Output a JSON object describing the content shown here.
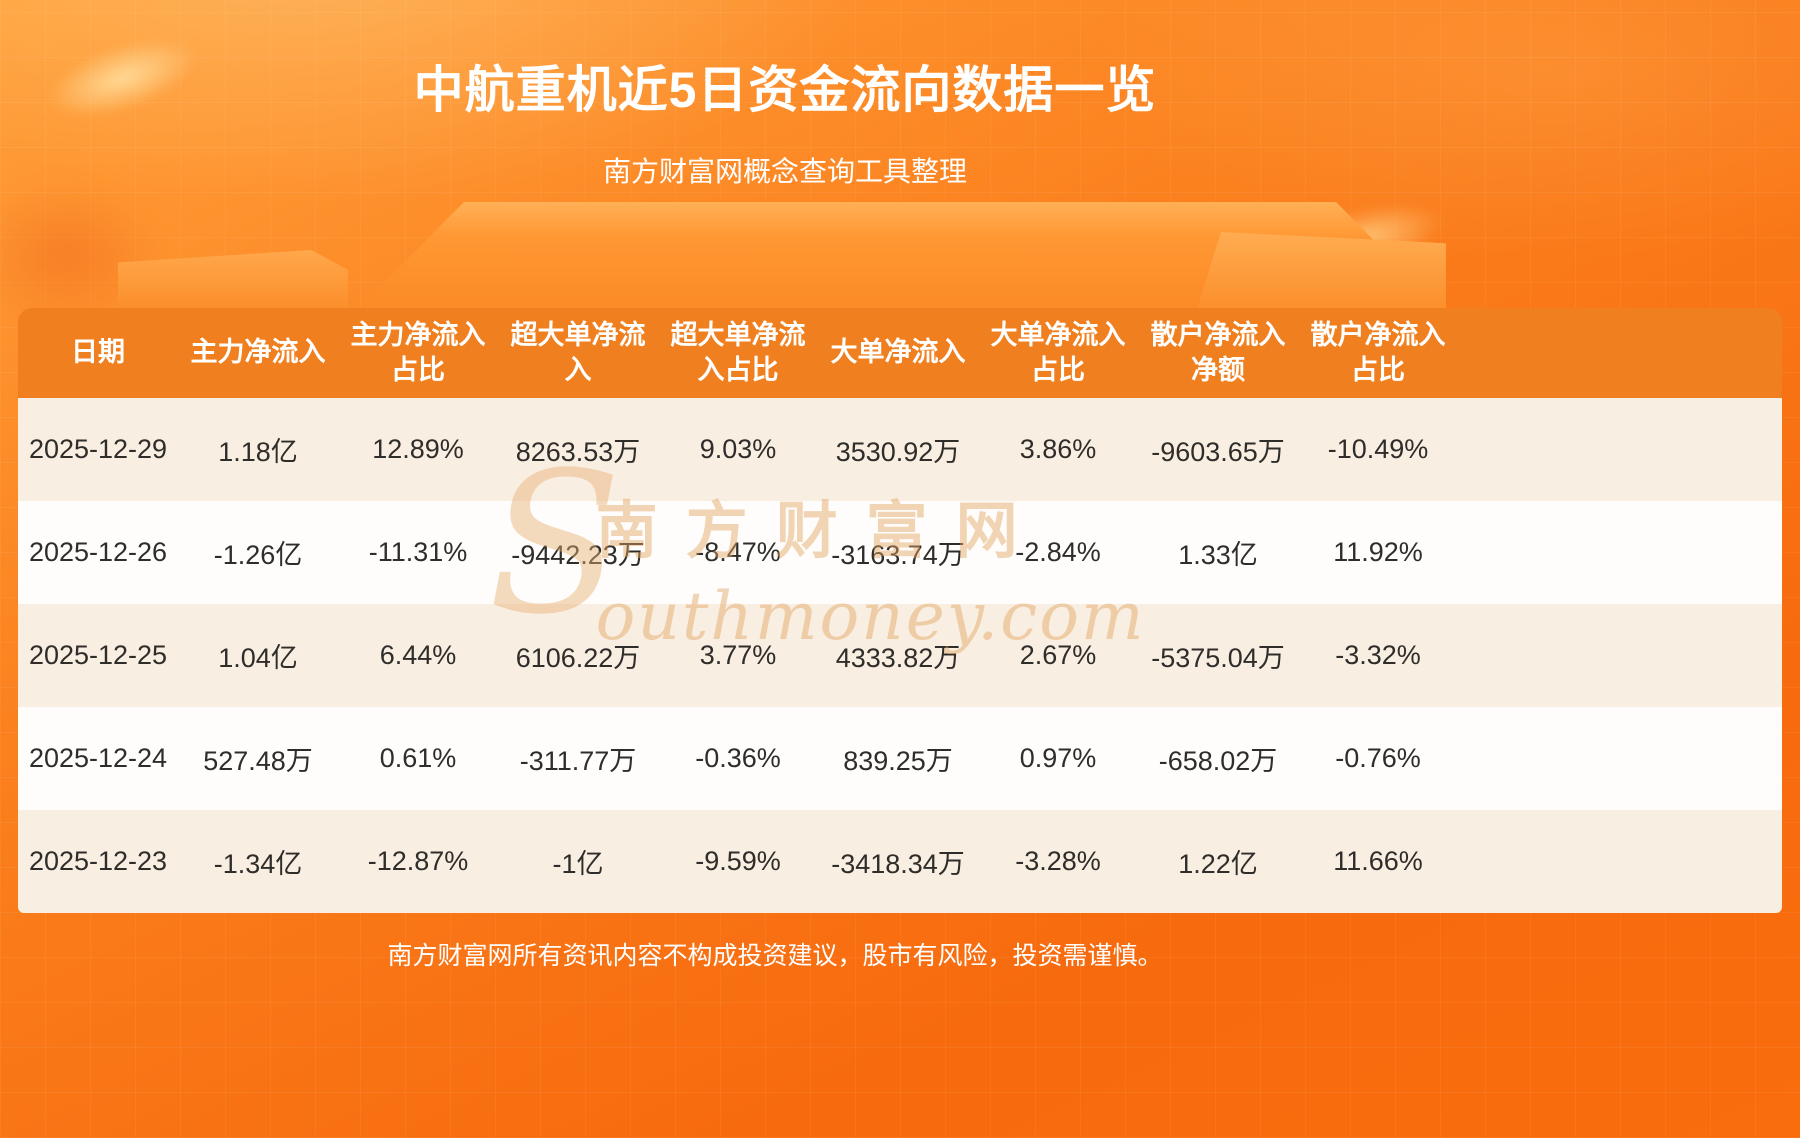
{
  "page": {
    "title": "中航重机近5日资金流向数据一览",
    "subtitle": "南方财富网概念查询工具整理",
    "footer": "南方财富网所有资讯内容不构成投资建议，股市有风险，投资需谨慎。",
    "watermark_s": "S",
    "watermark_cn": "南方财富网",
    "watermark_en": "outhmoney.com"
  },
  "colors": {
    "background_orange_top": "#ffa03a",
    "background_orange_bottom": "#f76a0e",
    "header_bg": "#f0801f",
    "row_cream": "#f9eee2",
    "row_light": "#fffdfb",
    "table_text": "#2f2d2a",
    "title_text": "#ffffff",
    "watermark": "#e2a35f"
  },
  "table": {
    "headers": [
      "日期",
      "主力净流入",
      "主力净流入\n占比",
      "超大单净流\n入",
      "超大单净流\n入占比",
      "大单净流入",
      "大单净流入\n占比",
      "散户净流入\n净额",
      "散户净流入\n占比"
    ]
  },
  "chart_data": {
    "type": "table",
    "title": "中航重机近5日资金流向数据一览",
    "source_note": "南方财富网概念查询工具整理",
    "columns": [
      "日期",
      "主力净流入",
      "主力净流入占比",
      "超大单净流入",
      "超大单净流入占比",
      "大单净流入",
      "大单净流入占比",
      "散户净流入净额",
      "散户净流入占比"
    ],
    "rows": [
      [
        "2025-12-29",
        "1.18亿",
        "12.89%",
        "8263.53万",
        "9.03%",
        "3530.92万",
        "3.86%",
        "-9603.65万",
        "-10.49%"
      ],
      [
        "2025-12-26",
        "-1.26亿",
        "-11.31%",
        "-9442.23万",
        "-8.47%",
        "-3163.74万",
        "-2.84%",
        "1.33亿",
        "11.92%"
      ],
      [
        "2025-12-25",
        "1.04亿",
        "6.44%",
        "6106.22万",
        "3.77%",
        "4333.82万",
        "2.67%",
        "-5375.04万",
        "-3.32%"
      ],
      [
        "2025-12-24",
        "527.48万",
        "0.61%",
        "-311.77万",
        "-0.36%",
        "839.25万",
        "0.97%",
        "-658.02万",
        "-0.76%"
      ],
      [
        "2025-12-23",
        "-1.34亿",
        "-12.87%",
        "-1亿",
        "-9.59%",
        "-3418.34万",
        "-3.28%",
        "1.22亿",
        "11.66%"
      ]
    ]
  }
}
